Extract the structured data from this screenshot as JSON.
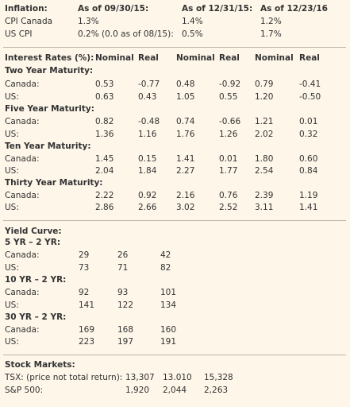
{
  "inflation": {
    "title": "Inflation:",
    "dates": [
      "As of 09/30/15:",
      "As of 12/31/15:",
      "As of 12/23/16"
    ],
    "rows": [
      {
        "label": "CPI Canada",
        "values": [
          "1.3%",
          "1.4%",
          "1.2%"
        ]
      },
      {
        "label": "US CPI",
        "values": [
          "0.2% (0.0 as of 08/15):",
          "0.5%",
          "1.7%"
        ]
      }
    ]
  },
  "interest": {
    "title": "Interest Rates (%):",
    "headers": [
      "Nominal",
      "Real",
      "Nominal",
      "Real",
      "Nominal",
      "Real"
    ],
    "groups": [
      {
        "title": "Two Year Maturity:",
        "rows": [
          {
            "label": "Canada:",
            "values": [
              "0.53",
              "-0.77",
              "0.48",
              "-0.92",
              "0.79",
              "-0.41"
            ]
          },
          {
            "label": "US:",
            "values": [
              "0.63",
              "0.43",
              "1.05",
              "0.55",
              "1.20",
              "-0.50"
            ]
          }
        ]
      },
      {
        "title": "Five Year Maturity:",
        "rows": [
          {
            "label": "Canada:",
            "values": [
              "0.82",
              "-0.48",
              "0.74",
              "-0.66",
              "1.21",
              "0.01"
            ]
          },
          {
            "label": "US:",
            "values": [
              "1.36",
              "1.16",
              "1.76",
              "1.26",
              "2.02",
              "0.32"
            ]
          }
        ]
      },
      {
        "title": "Ten Year Maturity:",
        "rows": [
          {
            "label": "Canada:",
            "values": [
              "1.45",
              "0.15",
              "1.41",
              "0.01",
              "1.80",
              "0.60"
            ]
          },
          {
            "label": "US:",
            "values": [
              "2.04",
              "1.84",
              "2.27",
              "1.77",
              "2.54",
              "0.84"
            ]
          }
        ]
      },
      {
        "title": "Thirty Year Maturity:",
        "rows": [
          {
            "label": "Canada:",
            "values": [
              "2.22",
              "0.92",
              "2.16",
              "0.76",
              "2.39",
              "1.19"
            ]
          },
          {
            "label": "US:",
            "values": [
              "2.86",
              "2.66",
              "3.02",
              "2.52",
              "3.11",
              "1.41"
            ]
          }
        ]
      }
    ]
  },
  "yield": {
    "title": "Yield Curve:",
    "groups": [
      {
        "title": "5 YR – 2 YR:",
        "rows": [
          {
            "label": "Canada:",
            "values": [
              "29",
              "26",
              "42"
            ]
          },
          {
            "label": "US:",
            "values": [
              "73",
              "71",
              "82"
            ]
          }
        ]
      },
      {
        "title": "10 YR – 2 YR:",
        "rows": [
          {
            "label": "Canada:",
            "values": [
              "92",
              "93",
              "101"
            ]
          },
          {
            "label": "US:",
            "values": [
              "141",
              "122",
              "134"
            ]
          }
        ]
      },
      {
        "title": "30 YR – 2 YR:",
        "rows": [
          {
            "label": "Canada:",
            "values": [
              "169",
              "168",
              "160"
            ]
          },
          {
            "label": "US:",
            "values": [
              "223",
              "197",
              "191"
            ]
          }
        ]
      }
    ]
  },
  "stocks": {
    "title": "Stock Markets:",
    "rows": [
      {
        "label": "TSX: (price not total return):",
        "values": [
          "13,307",
          "13.010",
          "15,328"
        ]
      },
      {
        "label": "S&P 500:",
        "values": [
          "1,920",
          "2,044",
          "2,263"
        ]
      }
    ]
  }
}
